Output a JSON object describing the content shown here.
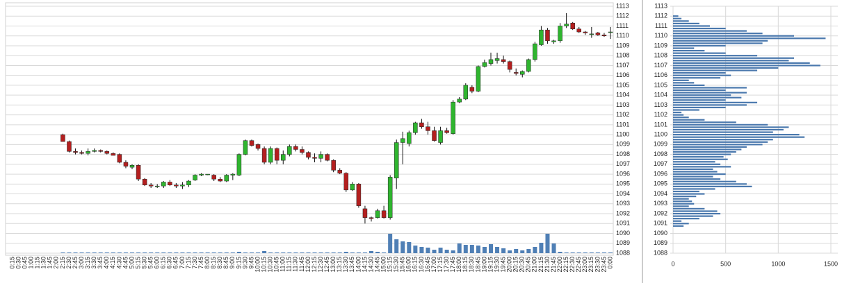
{
  "chart_data": [
    {
      "type": "candlestick",
      "categories": [
        "0:15",
        "0:30",
        "0:45",
        "1:00",
        "1:15",
        "1:30",
        "1:45",
        "2:00",
        "2:15",
        "2:30",
        "2:45",
        "3:00",
        "3:15",
        "3:30",
        "3:45",
        "4:00",
        "4:15",
        "4:30",
        "4:45",
        "5:00",
        "5:15",
        "5:30",
        "5:45",
        "6:00",
        "6:15",
        "6:30",
        "6:45",
        "7:00",
        "7:15",
        "7:30",
        "7:45",
        "8:00",
        "8:15",
        "8:30",
        "8:45",
        "9:00",
        "9:15",
        "9:30",
        "9:45",
        "10:00",
        "10:15",
        "10:30",
        "10:45",
        "11:00",
        "11:15",
        "11:30",
        "11:45",
        "12:00",
        "12:15",
        "12:30",
        "12:45",
        "13:00",
        "13:15",
        "13:30",
        "13:45",
        "14:00",
        "14:15",
        "14:30",
        "14:45",
        "15:00",
        "15:15",
        "15:30",
        "15:45",
        "16:00",
        "16:15",
        "16:30",
        "16:45",
        "17:00",
        "17:15",
        "17:30",
        "17:45",
        "18:00",
        "18:15",
        "18:30",
        "18:45",
        "19:00",
        "19:15",
        "19:30",
        "19:45",
        "20:00",
        "20:15",
        "20:30",
        "20:45",
        "21:00",
        "21:15",
        "21:30",
        "21:45",
        "22:00",
        "22:15",
        "22:30",
        "22:45",
        "23:00",
        "23:15",
        "23:30",
        "23:45",
        "0:00"
      ],
      "ohlc": [
        null,
        null,
        null,
        null,
        null,
        null,
        null,
        null,
        [
          1100.0,
          1100.1,
          1099.3,
          1099.3
        ],
        [
          1099.3,
          1099.4,
          1098.2,
          1098.3
        ],
        [
          1098.3,
          1098.6,
          1098.0,
          1098.2
        ],
        [
          1098.2,
          1098.4,
          1098.0,
          1098.1
        ],
        [
          1098.1,
          1098.6,
          1097.9,
          1098.3
        ],
        [
          1098.3,
          1098.6,
          1098.2,
          1098.4
        ],
        [
          1098.4,
          1098.5,
          1098.2,
          1098.3
        ],
        [
          1098.3,
          1098.4,
          1098.0,
          1098.1
        ],
        [
          1098.1,
          1098.2,
          1097.9,
          1097.9
        ],
        [
          1098.0,
          1098.1,
          1097.1,
          1097.2
        ],
        [
          1097.2,
          1097.4,
          1096.6,
          1096.8
        ],
        [
          1096.7,
          1097.0,
          1096.5,
          1096.9
        ],
        [
          1096.9,
          1097.0,
          1095.3,
          1095.5
        ],
        [
          1095.5,
          1095.6,
          1094.8,
          1094.9
        ],
        [
          1094.9,
          1095.1,
          1094.6,
          1094.8
        ],
        [
          1094.8,
          1095.0,
          1094.6,
          1094.8
        ],
        [
          1094.8,
          1095.3,
          1094.6,
          1095.2
        ],
        [
          1095.2,
          1095.4,
          1094.8,
          1094.9
        ],
        [
          1094.9,
          1095.1,
          1094.6,
          1094.8
        ],
        [
          1094.8,
          1095.2,
          1094.5,
          1094.9
        ],
        [
          1094.9,
          1095.4,
          1094.7,
          1095.3
        ],
        [
          1095.4,
          1096.0,
          1095.3,
          1095.9
        ],
        [
          1095.9,
          1096.1,
          1095.8,
          1096.0
        ],
        [
          1096.0,
          1096.0,
          1095.9,
          1096.0
        ],
        [
          1095.9,
          1096.0,
          1095.3,
          1095.5
        ],
        [
          1095.5,
          1095.7,
          1095.2,
          1095.3
        ],
        [
          1095.3,
          1096.0,
          1095.2,
          1095.9
        ],
        [
          1095.9,
          1096.1,
          1095.4,
          1096.0
        ],
        [
          1095.9,
          1098.1,
          1095.8,
          1098.0
        ],
        [
          1098.0,
          1099.5,
          1097.9,
          1099.4
        ],
        [
          1099.4,
          1099.5,
          1098.8,
          1098.9
        ],
        [
          1099.0,
          1099.1,
          1098.4,
          1098.6
        ],
        [
          1098.6,
          1098.8,
          1097.0,
          1097.2
        ],
        [
          1097.2,
          1098.8,
          1097.0,
          1098.6
        ],
        [
          1098.6,
          1098.7,
          1097.0,
          1097.4
        ],
        [
          1097.4,
          1098.4,
          1097.0,
          1098.0
        ],
        [
          1098.0,
          1099.0,
          1097.8,
          1098.8
        ],
        [
          1098.8,
          1099.0,
          1098.3,
          1098.5
        ],
        [
          1098.5,
          1098.8,
          1098.0,
          1098.2
        ],
        [
          1098.2,
          1098.3,
          1097.5,
          1097.7
        ],
        [
          1097.7,
          1098.1,
          1097.2,
          1097.6
        ],
        [
          1097.6,
          1098.3,
          1097.2,
          1098.0
        ],
        [
          1098.0,
          1098.1,
          1097.3,
          1097.4
        ],
        [
          1097.4,
          1097.5,
          1096.2,
          1096.4
        ],
        [
          1096.4,
          1096.6,
          1096.0,
          1096.1
        ],
        [
          1096.1,
          1096.2,
          1094.2,
          1094.4
        ],
        [
          1094.4,
          1095.2,
          1094.3,
          1095.0
        ],
        [
          1095.0,
          1095.1,
          1092.6,
          1092.8
        ],
        [
          1092.5,
          1092.8,
          1091.0,
          1091.6
        ],
        [
          1091.6,
          1091.7,
          1091.2,
          1091.5
        ],
        [
          1091.6,
          1092.5,
          1091.5,
          1092.3
        ],
        [
          1092.3,
          1092.8,
          1091.5,
          1091.6
        ],
        [
          1091.6,
          1095.9,
          1091.4,
          1095.7
        ],
        [
          1095.6,
          1099.5,
          1094.5,
          1099.2
        ],
        [
          1099.2,
          1100.3,
          1097.0,
          1099.6
        ],
        [
          1099.1,
          1100.4,
          1098.8,
          1100.2
        ],
        [
          1100.2,
          1101.3,
          1100.0,
          1101.2
        ],
        [
          1101.2,
          1101.6,
          1100.6,
          1100.8
        ],
        [
          1100.8,
          1101.3,
          1100.0,
          1100.4
        ],
        [
          1100.4,
          1100.8,
          1099.3,
          1099.4
        ],
        [
          1099.2,
          1100.8,
          1099.0,
          1100.4
        ],
        [
          1100.4,
          1100.7,
          1100.1,
          1100.2
        ],
        [
          1100.1,
          1103.5,
          1100.0,
          1103.3
        ],
        [
          1103.3,
          1103.8,
          1103.2,
          1103.6
        ],
        [
          1103.6,
          1105.2,
          1103.5,
          1105.0
        ],
        [
          1104.8,
          1105.0,
          1104.2,
          1104.4
        ],
        [
          1104.4,
          1107.0,
          1104.3,
          1106.9
        ],
        [
          1106.9,
          1107.6,
          1106.8,
          1107.3
        ],
        [
          1107.2,
          1108.3,
          1107.0,
          1107.6
        ],
        [
          1107.5,
          1108.3,
          1107.2,
          1107.7
        ],
        [
          1107.6,
          1108.0,
          1107.2,
          1107.4
        ],
        [
          1107.4,
          1107.5,
          1106.3,
          1106.6
        ],
        [
          1106.3,
          1106.7,
          1106.0,
          1106.2
        ],
        [
          1106.1,
          1106.5,
          1105.8,
          1106.4
        ],
        [
          1106.4,
          1107.7,
          1106.3,
          1107.6
        ],
        [
          1107.6,
          1109.4,
          1107.4,
          1109.2
        ],
        [
          1109.1,
          1111.0,
          1109.0,
          1110.6
        ],
        [
          1110.6,
          1110.8,
          1109.2,
          1109.5
        ],
        [
          1109.4,
          1109.6,
          1109.2,
          1109.5
        ],
        [
          1109.5,
          1111.3,
          1109.3,
          1111.0
        ],
        [
          1111.0,
          1112.3,
          1110.8,
          1111.2
        ],
        [
          1111.3,
          1111.4,
          1110.6,
          1110.7
        ],
        [
          1110.7,
          1110.9,
          1110.3,
          1110.4
        ],
        [
          1110.4,
          1110.5,
          1110.1,
          1110.3
        ],
        [
          1110.2,
          1110.9,
          1109.8,
          1110.2
        ],
        [
          1110.3,
          1110.4,
          1110.0,
          1110.1
        ],
        [
          1110.1,
          1110.3,
          1109.9,
          1110.0
        ],
        [
          1110.4,
          1110.9,
          1109.7,
          1110.4
        ]
      ],
      "volume": [
        0,
        0,
        0,
        0,
        0,
        0,
        0,
        0,
        1,
        1,
        1,
        1,
        1,
        1,
        1,
        1,
        1,
        1,
        1,
        1,
        1,
        1,
        1,
        1,
        1,
        1,
        1,
        1,
        1,
        1,
        1,
        1,
        1,
        1,
        1,
        1,
        2,
        1,
        1,
        1,
        3,
        1,
        1,
        1,
        1,
        1,
        1,
        1,
        1,
        1,
        1,
        1,
        1,
        2,
        1,
        1,
        1,
        3,
        2,
        1,
        28,
        20,
        17,
        16,
        11,
        9,
        8,
        5,
        8,
        5,
        4,
        14,
        12,
        12,
        11,
        9,
        13,
        9,
        7,
        4,
        6,
        4,
        6,
        9,
        15,
        28,
        14,
        2,
        1,
        1,
        1,
        1,
        1,
        1,
        1,
        1
      ],
      "up_color": "#2fb52f",
      "down_color": "#b41f1f",
      "volume_color": "#4f7fb5",
      "ylim": [
        1088,
        1113
      ],
      "yticks": [
        1088,
        1089,
        1090,
        1091,
        1092,
        1093,
        1094,
        1095,
        1096,
        1097,
        1098,
        1099,
        1100,
        1101,
        1102,
        1103,
        1104,
        1105,
        1106,
        1107,
        1108,
        1109,
        1110,
        1111,
        1112,
        1113
      ],
      "grid": true
    },
    {
      "type": "hbar",
      "y": [
        1090.75,
        1091,
        1091.25,
        1091.5,
        1091.75,
        1092,
        1092.25,
        1092.5,
        1092.75,
        1093,
        1093.25,
        1093.5,
        1093.75,
        1094,
        1094.25,
        1094.5,
        1094.75,
        1095,
        1095.25,
        1095.5,
        1095.75,
        1096,
        1096.25,
        1096.5,
        1096.75,
        1097,
        1097.25,
        1097.5,
        1097.75,
        1098,
        1098.25,
        1098.5,
        1098.75,
        1099,
        1099.25,
        1099.5,
        1099.75,
        1100,
        1100.25,
        1100.5,
        1100.75,
        1101,
        1101.25,
        1101.5,
        1101.75,
        1102,
        1102.25,
        1102.5,
        1102.75,
        1103,
        1103.25,
        1103.5,
        1103.75,
        1104,
        1104.25,
        1104.5,
        1104.75,
        1105,
        1105.25,
        1105.5,
        1105.75,
        1106,
        1106.25,
        1106.5,
        1106.75,
        1107,
        1107.25,
        1107.5,
        1107.75,
        1108,
        1108.25,
        1108.5,
        1108.75,
        1109,
        1109.25,
        1109.5,
        1109.75,
        1110,
        1110.25,
        1110.5,
        1110.75,
        1111,
        1111.25,
        1111.5,
        1111.75,
        1112
      ],
      "values": [
        100,
        150,
        80,
        250,
        380,
        450,
        420,
        300,
        150,
        200,
        180,
        150,
        220,
        300,
        250,
        400,
        750,
        700,
        600,
        450,
        380,
        500,
        420,
        380,
        550,
        450,
        400,
        520,
        480,
        550,
        600,
        650,
        700,
        850,
        900,
        950,
        1250,
        1200,
        950,
        1050,
        1100,
        900,
        600,
        300,
        150,
        100,
        80,
        250,
        500,
        700,
        800,
        500,
        650,
        550,
        700,
        500,
        700,
        300,
        200,
        150,
        450,
        550,
        500,
        800,
        1000,
        1400,
        1300,
        1100,
        1150,
        800,
        500,
        300,
        200,
        500,
        850,
        900,
        1450,
        1150,
        850,
        700,
        500,
        350,
        250,
        150,
        80,
        50
      ],
      "color": "#4a78ad",
      "ylim": [
        1088,
        1113
      ],
      "yticks": [
        1088,
        1089,
        1090,
        1091,
        1092,
        1093,
        1094,
        1095,
        1096,
        1097,
        1098,
        1099,
        1100,
        1101,
        1102,
        1103,
        1104,
        1105,
        1106,
        1107,
        1108,
        1109,
        1110,
        1111,
        1112,
        1113
      ],
      "xlim": [
        0,
        1500
      ],
      "xticks": [
        0,
        500,
        1000,
        1500
      ],
      "grid": true
    }
  ]
}
